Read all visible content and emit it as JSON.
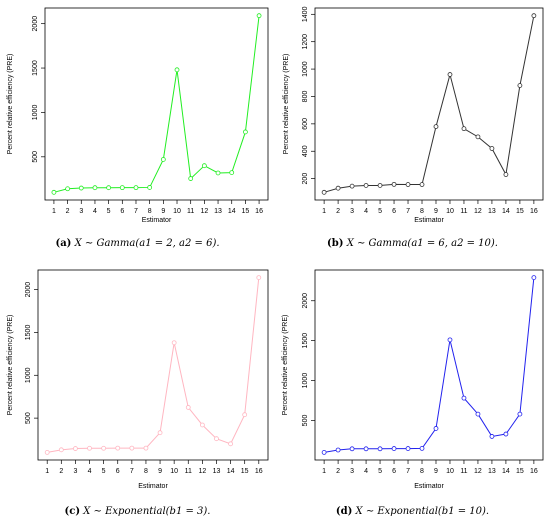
{
  "chart_data": [
    {
      "type": "line",
      "panel_label": "(a)",
      "caption": "X ∼ Gamma(a1 = 2, a2 = 6).",
      "xlabel": "Estimator",
      "ylabel": "Percent relative efficiency (PRE)",
      "x": [
        1,
        2,
        3,
        4,
        5,
        6,
        7,
        8,
        9,
        10,
        11,
        12,
        13,
        14,
        15,
        16
      ],
      "values": [
        100,
        140,
        148,
        152,
        152,
        153,
        153,
        155,
        470,
        1480,
        255,
        400,
        318,
        322,
        780,
        2090
      ],
      "yticks": [
        500,
        1000,
        1500,
        2000
      ],
      "ylim": [
        100,
        2090
      ],
      "color": "#22ee22"
    },
    {
      "type": "line",
      "panel_label": "(b)",
      "caption": "X ∼ Gamma(a1 = 6, a2 = 10).",
      "xlabel": "Estimator",
      "ylabel": "Percent relative efficiency (PRE)",
      "x": [
        1,
        2,
        3,
        4,
        5,
        6,
        7,
        8,
        9,
        10,
        11,
        12,
        13,
        14,
        15,
        16
      ],
      "values": [
        100,
        130,
        145,
        150,
        150,
        158,
        157,
        157,
        580,
        960,
        565,
        505,
        420,
        230,
        880,
        1390
      ],
      "yticks": [
        200,
        400,
        600,
        800,
        1000,
        1200,
        1400
      ],
      "ylim": [
        100,
        1390
      ],
      "color": "#333333"
    },
    {
      "type": "line",
      "panel_label": "(c)",
      "caption": "X ∼ Exponential(b1 = 3).",
      "xlabel": "Estimator",
      "ylabel": "Percent relative efficiency (PRE)",
      "x": [
        1,
        2,
        3,
        4,
        5,
        6,
        7,
        8,
        9,
        10,
        11,
        12,
        13,
        14,
        15,
        16
      ],
      "values": [
        100,
        130,
        145,
        148,
        148,
        150,
        150,
        150,
        330,
        1380,
        625,
        420,
        260,
        200,
        540,
        2140
      ],
      "yticks": [
        500,
        1000,
        1500,
        2000
      ],
      "ylim": [
        100,
        2140
      ],
      "color": "#ffb6c1"
    },
    {
      "type": "line",
      "panel_label": "(d)",
      "caption": "X ∼ Exponential(b1 = 10).",
      "xlabel": "Estimator",
      "ylabel": "Percent relative efficiency (PRE)",
      "x": [
        1,
        2,
        3,
        4,
        5,
        6,
        7,
        8,
        9,
        10,
        11,
        12,
        13,
        14,
        15,
        16
      ],
      "values": [
        100,
        130,
        145,
        145,
        145,
        148,
        148,
        150,
        400,
        1510,
        780,
        580,
        300,
        330,
        580,
        2290
      ],
      "yticks": [
        500,
        1000,
        1500,
        2000
      ],
      "ylim": [
        100,
        2290
      ],
      "color": "#2222ee"
    }
  ]
}
